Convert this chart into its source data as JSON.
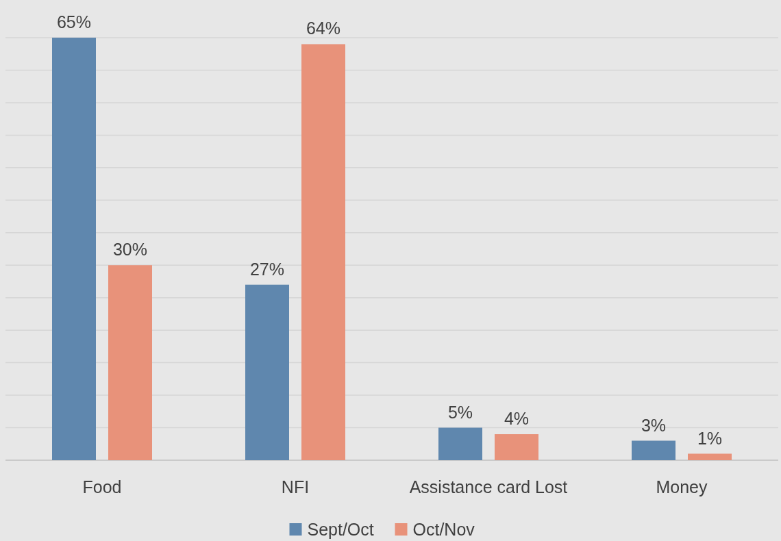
{
  "chart_data": {
    "type": "bar",
    "categories": [
      "Food",
      "NFI",
      "Assistance card Lost",
      "Money"
    ],
    "series": [
      {
        "name": "Sept/Oct",
        "color": "#5f87ae",
        "values": [
          65,
          27,
          5,
          3
        ],
        "value_labels": [
          "65%",
          "27%",
          "5%",
          "3%"
        ]
      },
      {
        "name": "Oct/Nov",
        "color": "#e8927a",
        "values": [
          30,
          64,
          4,
          1
        ],
        "value_labels": [
          "30%",
          "64%",
          "4%",
          "1%"
        ]
      }
    ],
    "grid": "y",
    "tick_labels": "x",
    "legend": "bottom"
  }
}
